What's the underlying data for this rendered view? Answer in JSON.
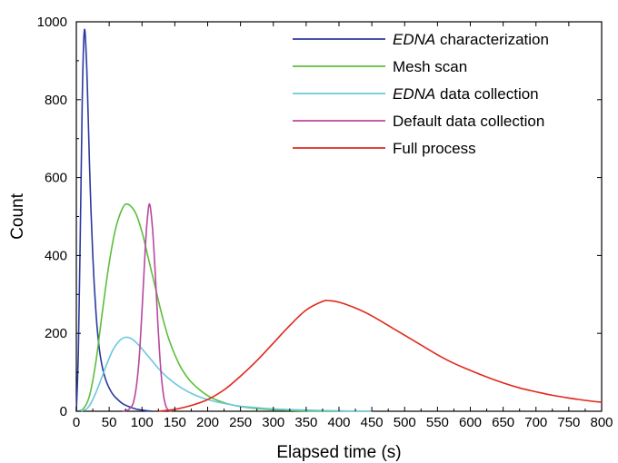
{
  "chart_data": {
    "type": "line",
    "title": "",
    "xlabel": "Elapsed time (s)",
    "ylabel": "Count",
    "xlim": [
      0,
      800
    ],
    "ylim": [
      0,
      1000
    ],
    "x_ticks": [
      0,
      50,
      100,
      150,
      200,
      250,
      300,
      350,
      400,
      450,
      500,
      550,
      600,
      650,
      700,
      750,
      800
    ],
    "y_ticks": [
      0,
      200,
      400,
      600,
      800,
      1000
    ],
    "grid": false,
    "legend_position": "top-right",
    "series": [
      {
        "name": "EDNA characterization",
        "name_italic": "EDNA",
        "name_rest": " characterization",
        "color": "#2b3aa0",
        "points": [
          [
            0,
            0
          ],
          [
            3,
            150
          ],
          [
            6,
            450
          ],
          [
            9,
            800
          ],
          [
            12,
            975
          ],
          [
            15,
            920
          ],
          [
            18,
            760
          ],
          [
            21,
            580
          ],
          [
            25,
            400
          ],
          [
            30,
            250
          ],
          [
            35,
            160
          ],
          [
            40,
            110
          ],
          [
            45,
            80
          ],
          [
            50,
            60
          ],
          [
            55,
            45
          ],
          [
            60,
            35
          ],
          [
            70,
            20
          ],
          [
            80,
            12
          ],
          [
            90,
            6
          ],
          [
            100,
            3
          ],
          [
            110,
            1
          ],
          [
            115,
            0
          ]
        ]
      },
      {
        "name": "Mesh scan",
        "color": "#5cbf3c",
        "points": [
          [
            0,
            0
          ],
          [
            10,
            5
          ],
          [
            20,
            40
          ],
          [
            30,
            130
          ],
          [
            40,
            260
          ],
          [
            50,
            380
          ],
          [
            60,
            470
          ],
          [
            70,
            520
          ],
          [
            78,
            532
          ],
          [
            90,
            510
          ],
          [
            100,
            460
          ],
          [
            110,
            390
          ],
          [
            120,
            320
          ],
          [
            130,
            250
          ],
          [
            140,
            190
          ],
          [
            150,
            145
          ],
          [
            160,
            110
          ],
          [
            175,
            75
          ],
          [
            200,
            40
          ],
          [
            225,
            22
          ],
          [
            250,
            12
          ],
          [
            275,
            7
          ],
          [
            300,
            4
          ],
          [
            350,
            1
          ],
          [
            400,
            0
          ]
        ]
      },
      {
        "name": "EDNA data collection",
        "name_italic": "EDNA",
        "name_rest": " data collection",
        "color": "#6cc8dc",
        "points": [
          [
            0,
            0
          ],
          [
            15,
            5
          ],
          [
            25,
            30
          ],
          [
            35,
            70
          ],
          [
            45,
            115
          ],
          [
            55,
            155
          ],
          [
            65,
            180
          ],
          [
            75,
            190
          ],
          [
            85,
            185
          ],
          [
            95,
            170
          ],
          [
            105,
            150
          ],
          [
            115,
            130
          ],
          [
            125,
            110
          ],
          [
            140,
            85
          ],
          [
            160,
            60
          ],
          [
            180,
            42
          ],
          [
            200,
            30
          ],
          [
            225,
            20
          ],
          [
            250,
            13
          ],
          [
            275,
            9
          ],
          [
            300,
            6
          ],
          [
            350,
            3
          ],
          [
            400,
            1
          ],
          [
            450,
            0
          ]
        ]
      },
      {
        "name": "Default data collection",
        "color": "#b8489e",
        "points": [
          [
            70,
            0
          ],
          [
            80,
            5
          ],
          [
            88,
            30
          ],
          [
            95,
            120
          ],
          [
            100,
            260
          ],
          [
            105,
            420
          ],
          [
            109,
            510
          ],
          [
            112,
            530
          ],
          [
            116,
            470
          ],
          [
            120,
            360
          ],
          [
            124,
            230
          ],
          [
            128,
            120
          ],
          [
            132,
            50
          ],
          [
            136,
            15
          ],
          [
            140,
            3
          ],
          [
            145,
            0
          ]
        ]
      },
      {
        "name": "Full process",
        "color": "#e0281c",
        "points": [
          [
            125,
            0
          ],
          [
            150,
            5
          ],
          [
            175,
            15
          ],
          [
            200,
            30
          ],
          [
            225,
            55
          ],
          [
            250,
            90
          ],
          [
            275,
            130
          ],
          [
            300,
            175
          ],
          [
            325,
            220
          ],
          [
            350,
            260
          ],
          [
            375,
            282
          ],
          [
            385,
            284
          ],
          [
            400,
            280
          ],
          [
            425,
            265
          ],
          [
            450,
            245
          ],
          [
            475,
            220
          ],
          [
            500,
            195
          ],
          [
            525,
            170
          ],
          [
            550,
            145
          ],
          [
            575,
            123
          ],
          [
            600,
            105
          ],
          [
            625,
            88
          ],
          [
            650,
            73
          ],
          [
            675,
            60
          ],
          [
            700,
            50
          ],
          [
            725,
            41
          ],
          [
            750,
            34
          ],
          [
            775,
            28
          ],
          [
            800,
            23
          ]
        ]
      }
    ]
  }
}
